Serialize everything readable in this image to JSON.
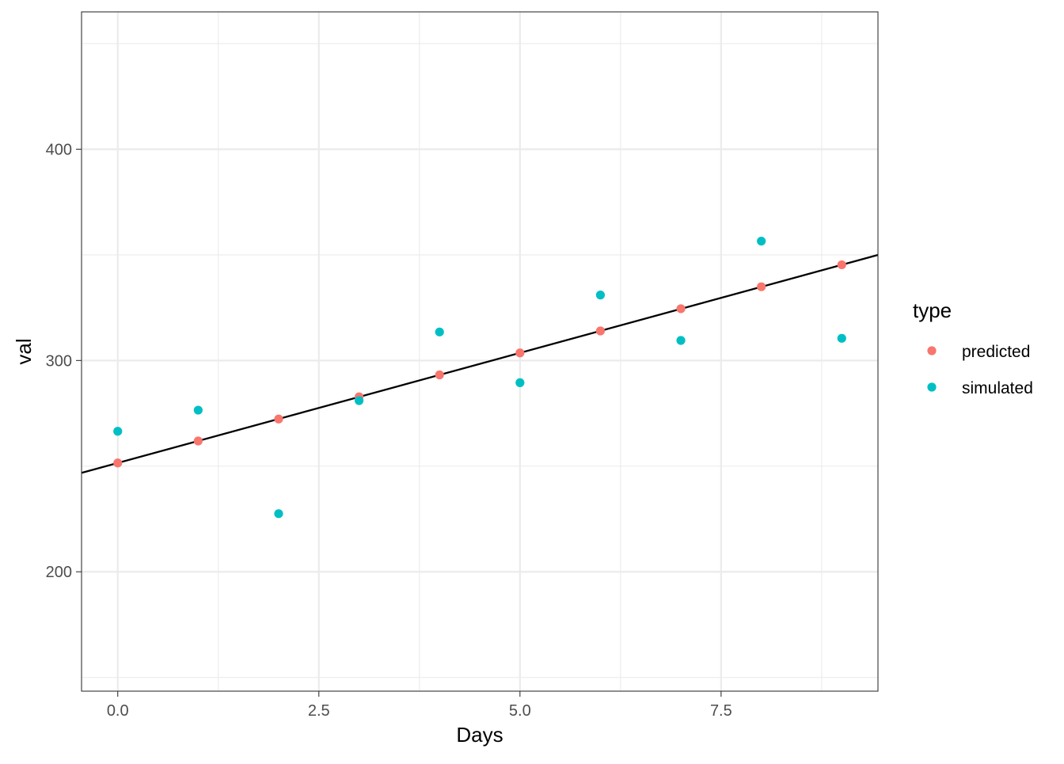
{
  "chart_data": {
    "type": "scatter",
    "xlabel": "Days",
    "ylabel": "val",
    "xlim": [
      -0.45,
      9.45
    ],
    "ylim": [
      143.5,
      465
    ],
    "x_ticks": [
      0.0,
      2.5,
      5.0,
      7.5
    ],
    "x_tick_labels": [
      "0.0",
      "2.5",
      "5.0",
      "7.5"
    ],
    "y_ticks": [
      200,
      300,
      400
    ],
    "y_tick_labels": [
      "200",
      "300",
      "400"
    ],
    "grid": true,
    "legend": {
      "title": "type",
      "position": "right"
    },
    "series": [
      {
        "name": "predicted",
        "color": "#F8766D",
        "x": [
          0,
          1,
          2,
          3,
          4,
          5,
          6,
          7,
          8,
          9
        ],
        "y": [
          251.5,
          261.9,
          272.3,
          282.8,
          293.2,
          303.6,
          314.0,
          324.5,
          334.9,
          345.3
        ]
      },
      {
        "name": "simulated",
        "color": "#00BFC4",
        "x": [
          0,
          1,
          2,
          3,
          4,
          5,
          6,
          7,
          8,
          9
        ],
        "y": [
          266.5,
          276.5,
          227.5,
          281.0,
          313.5,
          289.5,
          331.0,
          309.5,
          356.5,
          310.5
        ]
      }
    ],
    "fit_line": {
      "color": "#000000",
      "intercept": 251.5,
      "slope": 10.42
    }
  }
}
